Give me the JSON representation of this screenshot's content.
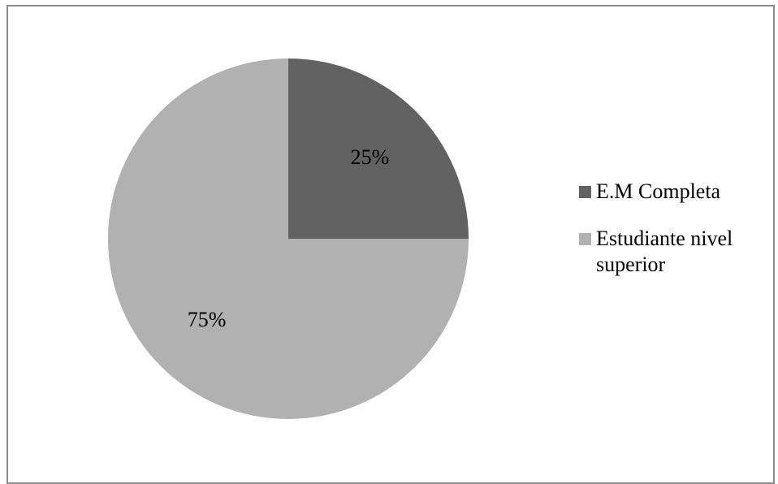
{
  "chart_data": {
    "type": "pie",
    "categories": [
      "E.M Completa",
      "Estudiante nivel superior"
    ],
    "values": [
      25,
      75
    ],
    "labels": [
      "25%",
      "75%"
    ],
    "colors": [
      "#626262",
      "#b1b1b1"
    ],
    "legend_position": "right"
  }
}
